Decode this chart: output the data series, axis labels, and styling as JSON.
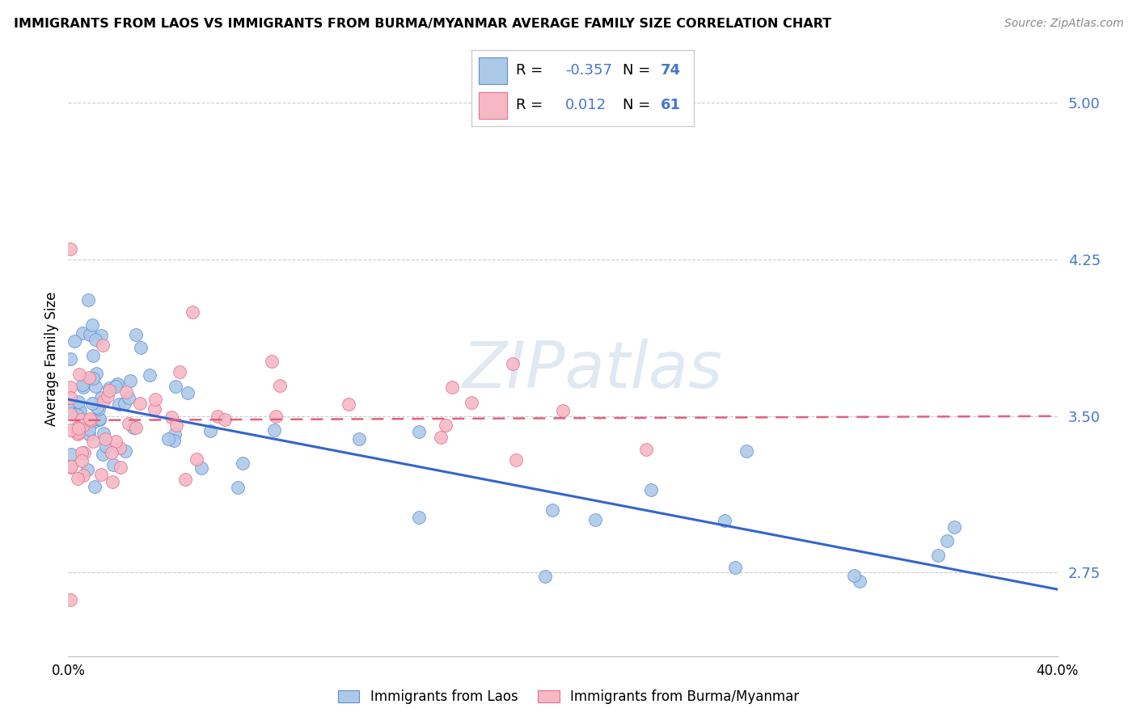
{
  "title": "IMMIGRANTS FROM LAOS VS IMMIGRANTS FROM BURMA/MYANMAR AVERAGE FAMILY SIZE CORRELATION CHART",
  "source": "Source: ZipAtlas.com",
  "ylabel": "Average Family Size",
  "yticks": [
    2.75,
    3.5,
    4.25,
    5.0
  ],
  "xlim": [
    0.0,
    0.4
  ],
  "ylim": [
    2.35,
    5.2
  ],
  "laos_R": "-0.357",
  "laos_N": "74",
  "burma_R": "0.012",
  "burma_N": "61",
  "laos_fill": "#adc9e8",
  "laos_edge": "#5b8fd4",
  "burma_fill": "#f5b8c4",
  "burma_edge": "#e07090",
  "laos_line": "#3366cc",
  "burma_line": "#e06080",
  "watermark": "ZIPatlas",
  "bg": "#ffffff",
  "grid_color": "#cccccc",
  "ytick_color": "#4477cc",
  "leg_box_color": "#dddddd"
}
